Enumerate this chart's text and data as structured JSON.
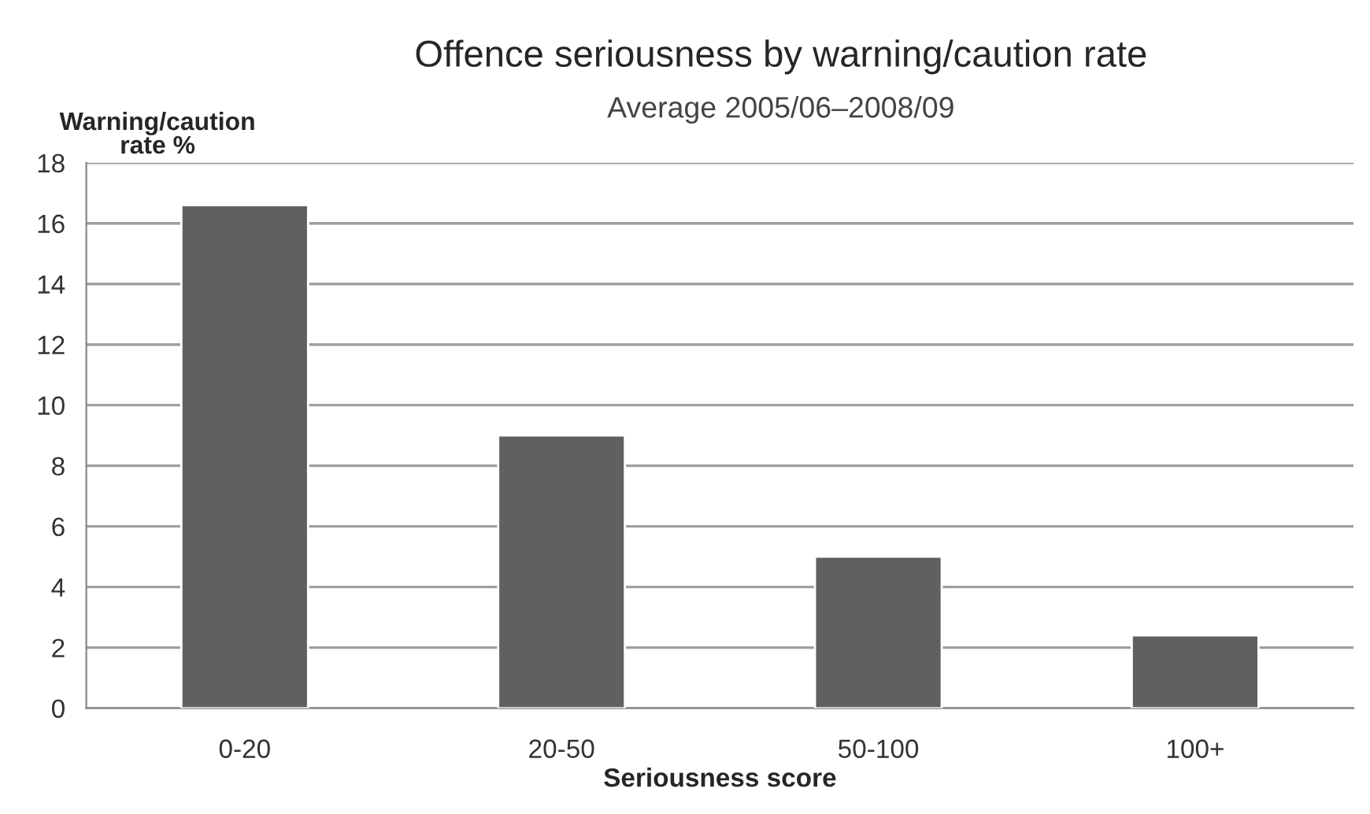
{
  "chart_data": {
    "type": "bar",
    "title": "Offence seriousness by warning/caution rate",
    "subtitle": "Average 2005/06–2008/09",
    "xlabel": "Seriousness score",
    "ylabel": "Warning/caution\nrate %",
    "categories": [
      "0-20",
      "20-50",
      "50-100",
      "100+"
    ],
    "values": [
      16.6,
      9.0,
      5.0,
      2.4
    ],
    "color": "#606060",
    "ylim": [
      0,
      18
    ],
    "yticks": [
      0,
      2,
      4,
      6,
      8,
      10,
      12,
      14,
      16,
      18
    ],
    "grid": "y"
  }
}
